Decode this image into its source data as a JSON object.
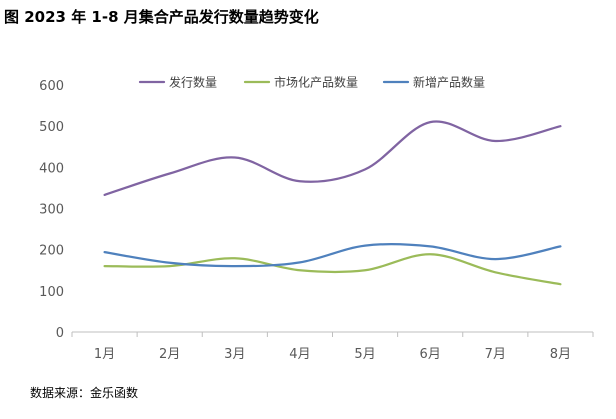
{
  "title": "图 2023 年 1-8 月集合产品发行数量趋势变化",
  "source": "数据来源：金乐函数",
  "chart_data": {
    "type": "line",
    "title": "图 2023 年 1-8 月集合产品发行数量趋势变化",
    "xlabel": "",
    "ylabel": "",
    "categories": [
      "1月",
      "2月",
      "3月",
      "4月",
      "5月",
      "6月",
      "7月",
      "8月"
    ],
    "ylim": [
      0,
      600
    ],
    "yticks": [
      0,
      100,
      200,
      300,
      400,
      500,
      600
    ],
    "grid": false,
    "legend_position": "top",
    "smooth": true,
    "series": [
      {
        "name": "发行数量",
        "color": "#8064a2",
        "values": [
          333,
          385,
          424,
          366,
          395,
          510,
          464,
          500
        ]
      },
      {
        "name": "市场化产品数量",
        "color": "#9bbb59",
        "values": [
          160,
          160,
          179,
          150,
          150,
          189,
          145,
          116
        ]
      },
      {
        "name": "新增产品数量",
        "color": "#4f81bd",
        "values": [
          194,
          168,
          160,
          169,
          210,
          208,
          177,
          208
        ]
      }
    ]
  }
}
